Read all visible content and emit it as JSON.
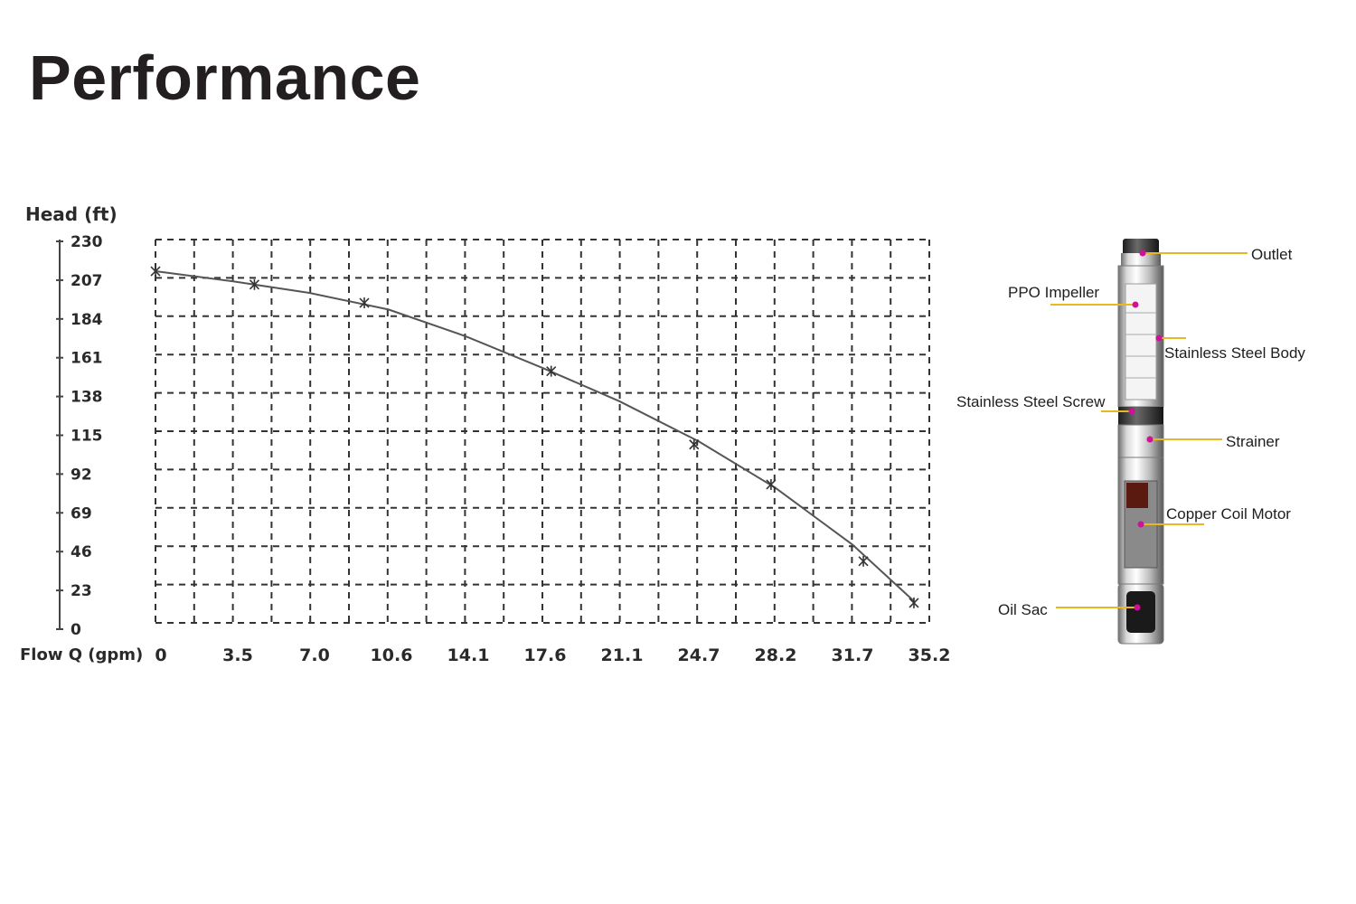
{
  "title": "Performance",
  "chart_data": {
    "type": "line",
    "ylabel": "Head (ft)",
    "xlabel": "Flow Q (gpm)",
    "y_ticks": [
      "230",
      "207",
      "184",
      "161",
      "138",
      "115",
      "92",
      "69",
      "46",
      "23",
      "0"
    ],
    "x_ticks": [
      "0",
      "3.5",
      "7.0",
      "10.6",
      "14.1",
      "17.6",
      "21.1",
      "24.7",
      "28.2",
      "31.7",
      "35.2"
    ],
    "xlim": [
      0,
      35.2
    ],
    "ylim": [
      0,
      230
    ],
    "grid": true,
    "curve": {
      "x": [
        0,
        3.5,
        7.0,
        10.6,
        14.1,
        17.6,
        21.1,
        24.7,
        28.2,
        31.7,
        34.5
      ],
      "y": [
        211,
        205,
        198,
        188,
        172,
        153,
        133,
        109,
        81,
        47,
        13
      ]
    },
    "markers": {
      "x": [
        0,
        4.5,
        9.5,
        18.0,
        24.5,
        28.0,
        32.2,
        34.5
      ],
      "y": [
        211,
        203,
        192,
        151,
        107,
        83,
        37,
        12
      ]
    },
    "line_color": "#555555"
  },
  "diagram": {
    "labels": {
      "outlet": "Outlet",
      "ppo_impeller": "PPO Impeller",
      "stainless_body": "Stainless Steel Body",
      "stainless_screw": "Stainless Steel Screw",
      "strainer": "Strainer",
      "copper_coil_motor": "Copper Coil Motor",
      "oil_sac": "Oil Sac"
    },
    "leader_color": "#e8b820",
    "dot_color": "#d0109a"
  }
}
